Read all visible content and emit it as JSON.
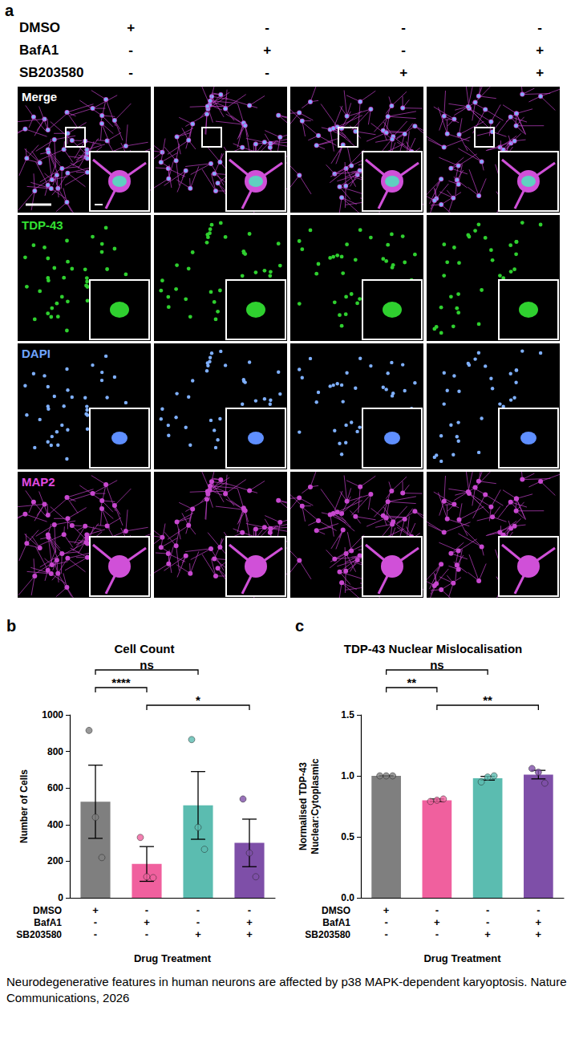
{
  "panel_labels": [
    "a",
    "b",
    "c"
  ],
  "panel_a": {
    "treatments": [
      {
        "name": "DMSO",
        "signs": [
          "+",
          "-",
          "-",
          "-"
        ]
      },
      {
        "name": "BafA1",
        "signs": [
          "-",
          "+",
          "-",
          "+"
        ]
      },
      {
        "name": "SB203580",
        "signs": [
          "-",
          "-",
          "+",
          "+"
        ]
      }
    ],
    "channels": [
      "Merge",
      "TDP-43",
      "DAPI",
      "MAP2"
    ]
  },
  "chart_data": [
    {
      "type": "bar",
      "panel": "b",
      "title": "Cell Count",
      "y_label": "Number of Cells",
      "x_label": "Drug Treatment",
      "categories": [
        null,
        null,
        null,
        null
      ],
      "treatments": [
        {
          "name": "DMSO",
          "signs": [
            "+",
            "-",
            "-",
            "-"
          ]
        },
        {
          "name": "BafA1",
          "signs": [
            "-",
            "+",
            "-",
            "+"
          ]
        },
        {
          "name": "SB203580",
          "signs": [
            "-",
            "-",
            "+",
            "+"
          ]
        }
      ],
      "values": [
        525,
        185,
        505,
        300
      ],
      "errors": [
        200,
        95,
        185,
        130
      ],
      "points": [
        [
          915,
          440,
          220
        ],
        [
          330,
          115,
          110
        ],
        [
          865,
          385,
          265
        ],
        [
          540,
          245,
          115
        ]
      ],
      "colors": [
        "#7f7f7f",
        "#f0609e",
        "#5bbcb0",
        "#7e4fa8"
      ],
      "ylim": [
        0,
        1000
      ],
      "yticks": [
        0,
        200,
        400,
        600,
        800,
        1000
      ],
      "grid": false,
      "significance": [
        {
          "from": 1,
          "to": 3,
          "label": "*"
        },
        {
          "from": 0,
          "to": 1,
          "label": "****"
        },
        {
          "from": 0,
          "to": 2,
          "label": "ns"
        }
      ]
    },
    {
      "type": "bar",
      "panel": "c",
      "title": "TDP-43 Nuclear Mislocalisation",
      "y_label": "Normalised TDP-43 Nuclear:Cytoplasmic",
      "x_label": "Drug Treatment",
      "categories": [
        null,
        null,
        null,
        null
      ],
      "treatments": [
        {
          "name": "DMSO",
          "signs": [
            "+",
            "-",
            "-",
            "-"
          ]
        },
        {
          "name": "BafA1",
          "signs": [
            "-",
            "+",
            "-",
            "+"
          ]
        },
        {
          "name": "SB203580",
          "signs": [
            "-",
            "-",
            "+",
            "+"
          ]
        }
      ],
      "values": [
        1.0,
        0.8,
        0.98,
        1.01
      ],
      "errors": [
        0,
        0.01,
        0.015,
        0.035
      ],
      "points": [
        [
          1.0,
          1.0,
          1.0
        ],
        [
          0.79,
          0.8,
          0.81
        ],
        [
          0.95,
          0.99,
          1.0
        ],
        [
          1.06,
          1.03,
          0.94
        ]
      ],
      "colors": [
        "#7f7f7f",
        "#f0609e",
        "#5bbcb0",
        "#7e4fa8"
      ],
      "ylim": [
        0,
        1.5
      ],
      "yticks": [
        {
          "value": 0,
          "label": "0.0"
        },
        {
          "value": 0.5,
          "label": "0.5"
        },
        {
          "value": 1.0,
          "label": "1.0"
        },
        {
          "value": 1.5,
          "label": "1.5"
        }
      ],
      "grid": false,
      "significance": [
        {
          "from": 1,
          "to": 3,
          "label": "**"
        },
        {
          "from": 0,
          "to": 1,
          "label": "**"
        },
        {
          "from": 0,
          "to": 2,
          "label": "ns"
        }
      ]
    }
  ],
  "caption": "Neurodegenerative features in human neurons are affected by p38 MAPK-dependent karyoptosis. Nature Communications, 2026"
}
